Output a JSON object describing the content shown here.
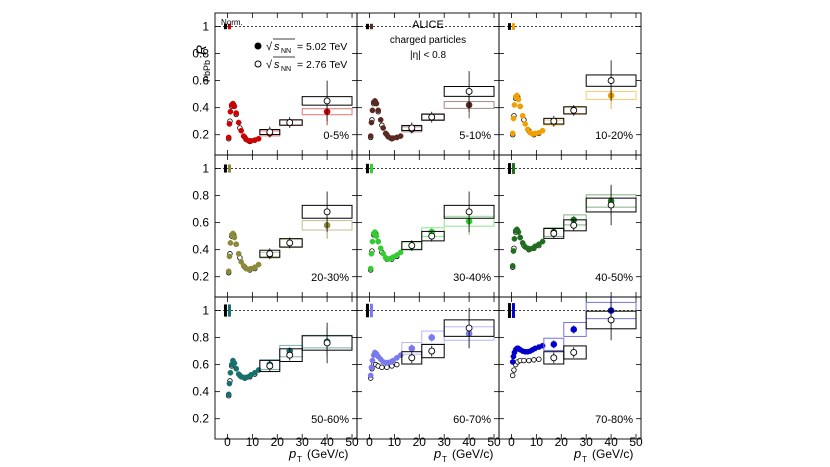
{
  "figure": {
    "ylabel_main": "R",
    "ylabel_sub": "PbPb",
    "xlabel_main": "p",
    "xlabel_sub": "T",
    "xlabel_units": "(GeV/c)",
    "norm_label": "Norm.",
    "legend": {
      "filled_prefix": "√",
      "filled_s": "s",
      "filled_sub": "NN",
      "filled_value": "= 5.02 TeV",
      "open_prefix": "√",
      "open_s": "s",
      "open_sub": "NN",
      "open_value": "= 2.76 TeV"
    },
    "annotation": {
      "line1": "ALICE",
      "line2": "charged particles",
      "line3": "|η| < 0.8"
    }
  },
  "chart_data": {
    "type": "scatter",
    "title": "",
    "xlabel": "pT (GeV/c)",
    "ylabel": "RPbPb",
    "xlim": [
      -5,
      52
    ],
    "ylim": [
      0.05,
      1.1
    ],
    "xticks": [
      0,
      10,
      20,
      30,
      40,
      50
    ],
    "yticks": [
      0.2,
      0.4,
      0.6,
      0.8,
      1
    ],
    "reference_line": 1,
    "series_labels": [
      "√sNN = 5.02 TeV (filled)",
      "√sNN = 2.76 TeV (open)"
    ],
    "panels": [
      {
        "label": "0-5%",
        "color": "#cc0000",
        "curve_502": [
          [
            0.5,
            0.18
          ],
          [
            0.8,
            0.28
          ],
          [
            1.2,
            0.37
          ],
          [
            1.7,
            0.42
          ],
          [
            2.2,
            0.43
          ],
          [
            2.8,
            0.41
          ],
          [
            3.5,
            0.36
          ],
          [
            4.5,
            0.29
          ],
          [
            5.5,
            0.23
          ],
          [
            6.5,
            0.19
          ],
          [
            7.5,
            0.165
          ],
          [
            8.5,
            0.155
          ],
          [
            9.5,
            0.155
          ],
          [
            11,
            0.16
          ],
          [
            12.5,
            0.17
          ]
        ],
        "curve_276": [
          [
            0.5,
            0.17
          ],
          [
            1.0,
            0.3
          ],
          [
            1.7,
            0.41
          ],
          [
            2.5,
            0.42
          ],
          [
            3.5,
            0.35
          ],
          [
            5,
            0.25
          ],
          [
            7,
            0.18
          ],
          [
            9,
            0.15
          ],
          [
            11,
            0.16
          ]
        ],
        "hp_502": [
          [
            17,
            0.21
          ],
          [
            25,
            0.29
          ],
          [
            40,
            0.37
          ]
        ],
        "hp_276": [
          [
            17,
            0.22
          ],
          [
            25,
            0.29
          ],
          [
            40,
            0.45
          ]
        ],
        "norm_unc": 0.02
      },
      {
        "label": "5-10%",
        "color": "#5a2a22",
        "curve_502": [
          [
            0.5,
            0.19
          ],
          [
            0.8,
            0.29
          ],
          [
            1.2,
            0.38
          ],
          [
            1.7,
            0.44
          ],
          [
            2.2,
            0.45
          ],
          [
            2.8,
            0.43
          ],
          [
            3.5,
            0.38
          ],
          [
            4.5,
            0.31
          ],
          [
            5.5,
            0.25
          ],
          [
            6.5,
            0.21
          ],
          [
            7.5,
            0.185
          ],
          [
            8.5,
            0.175
          ],
          [
            9.5,
            0.175
          ],
          [
            11,
            0.18
          ],
          [
            12.5,
            0.19
          ]
        ],
        "curve_276": [
          [
            0.5,
            0.18
          ],
          [
            1.0,
            0.31
          ],
          [
            1.7,
            0.43
          ],
          [
            2.5,
            0.44
          ],
          [
            3.5,
            0.37
          ],
          [
            5,
            0.27
          ],
          [
            7,
            0.2
          ],
          [
            9,
            0.17
          ],
          [
            11,
            0.18
          ]
        ],
        "hp_502": [
          [
            17,
            0.24
          ],
          [
            25,
            0.33
          ],
          [
            40,
            0.42
          ]
        ],
        "hp_276": [
          [
            17,
            0.25
          ],
          [
            25,
            0.33
          ],
          [
            40,
            0.52
          ]
        ],
        "norm_unc": 0.02
      },
      {
        "label": "10-20%",
        "color": "#f0a000",
        "curve_502": [
          [
            0.5,
            0.21
          ],
          [
            0.8,
            0.32
          ],
          [
            1.2,
            0.42
          ],
          [
            1.7,
            0.48
          ],
          [
            2.2,
            0.49
          ],
          [
            2.8,
            0.46
          ],
          [
            3.5,
            0.41
          ],
          [
            4.5,
            0.34
          ],
          [
            5.5,
            0.28
          ],
          [
            6.5,
            0.24
          ],
          [
            7.5,
            0.215
          ],
          [
            8.5,
            0.205
          ],
          [
            9.5,
            0.21
          ],
          [
            11,
            0.215
          ],
          [
            12.5,
            0.23
          ]
        ],
        "curve_276": [
          [
            0.5,
            0.2
          ],
          [
            1.0,
            0.34
          ],
          [
            1.7,
            0.47
          ],
          [
            2.5,
            0.48
          ],
          [
            3.5,
            0.41
          ],
          [
            5,
            0.31
          ],
          [
            7,
            0.23
          ],
          [
            9,
            0.2
          ],
          [
            11,
            0.21
          ]
        ],
        "hp_502": [
          [
            17,
            0.29
          ],
          [
            25,
            0.38
          ],
          [
            40,
            0.49
          ]
        ],
        "hp_276": [
          [
            17,
            0.3
          ],
          [
            25,
            0.38
          ],
          [
            40,
            0.6
          ]
        ],
        "norm_unc": 0.025
      },
      {
        "label": "20-30%",
        "color": "#8c8a3a",
        "curve_502": [
          [
            0.5,
            0.24
          ],
          [
            0.8,
            0.35
          ],
          [
            1.2,
            0.45
          ],
          [
            1.7,
            0.51
          ],
          [
            2.2,
            0.52
          ],
          [
            2.8,
            0.49
          ],
          [
            3.5,
            0.44
          ],
          [
            4.5,
            0.37
          ],
          [
            5.5,
            0.31
          ],
          [
            6.5,
            0.28
          ],
          [
            7.5,
            0.26
          ],
          [
            8.5,
            0.255
          ],
          [
            9.5,
            0.26
          ],
          [
            11,
            0.27
          ],
          [
            12.5,
            0.29
          ]
        ],
        "curve_276": [
          [
            0.5,
            0.23
          ],
          [
            1.0,
            0.37
          ],
          [
            1.7,
            0.5
          ],
          [
            2.5,
            0.51
          ],
          [
            3.5,
            0.44
          ],
          [
            5,
            0.34
          ],
          [
            7,
            0.27
          ],
          [
            9,
            0.25
          ],
          [
            11,
            0.26
          ]
        ],
        "hp_502": [
          [
            17,
            0.36
          ],
          [
            25,
            0.45
          ],
          [
            40,
            0.58
          ]
        ],
        "hp_276": [
          [
            17,
            0.37
          ],
          [
            25,
            0.45
          ],
          [
            40,
            0.68
          ]
        ],
        "norm_unc": 0.03
      },
      {
        "label": "30-40%",
        "color": "#33cc33",
        "curve_502": [
          [
            0.5,
            0.26
          ],
          [
            0.8,
            0.37
          ],
          [
            1.2,
            0.46
          ],
          [
            1.7,
            0.52
          ],
          [
            2.2,
            0.53
          ],
          [
            2.8,
            0.5
          ],
          [
            3.5,
            0.46
          ],
          [
            4.5,
            0.41
          ],
          [
            5.5,
            0.37
          ],
          [
            6.5,
            0.34
          ],
          [
            7.5,
            0.33
          ],
          [
            8.5,
            0.335
          ],
          [
            9.5,
            0.345
          ],
          [
            11,
            0.36
          ],
          [
            12.5,
            0.38
          ]
        ],
        "curve_276": [
          [
            0.5,
            0.25
          ],
          [
            1.0,
            0.39
          ],
          [
            1.7,
            0.51
          ],
          [
            2.5,
            0.52
          ],
          [
            3.5,
            0.46
          ],
          [
            5,
            0.38
          ],
          [
            7,
            0.33
          ],
          [
            9,
            0.33
          ],
          [
            11,
            0.35
          ]
        ],
        "hp_502": [
          [
            17,
            0.43
          ],
          [
            25,
            0.53
          ],
          [
            40,
            0.61
          ]
        ],
        "hp_276": [
          [
            17,
            0.43
          ],
          [
            25,
            0.5
          ],
          [
            40,
            0.68
          ]
        ],
        "norm_unc": 0.035
      },
      {
        "label": "40-50%",
        "color": "#1f6e1f",
        "curve_502": [
          [
            0.5,
            0.28
          ],
          [
            0.8,
            0.39
          ],
          [
            1.2,
            0.48
          ],
          [
            1.7,
            0.54
          ],
          [
            2.2,
            0.55
          ],
          [
            2.8,
            0.53
          ],
          [
            3.5,
            0.49
          ],
          [
            4.5,
            0.45
          ],
          [
            5.5,
            0.42
          ],
          [
            6.5,
            0.41
          ],
          [
            7.5,
            0.405
          ],
          [
            8.5,
            0.41
          ],
          [
            9.5,
            0.425
          ],
          [
            11,
            0.44
          ],
          [
            12.5,
            0.46
          ]
        ],
        "curve_276": [
          [
            0.5,
            0.27
          ],
          [
            1.0,
            0.41
          ],
          [
            1.7,
            0.53
          ],
          [
            2.5,
            0.54
          ],
          [
            3.5,
            0.49
          ],
          [
            5,
            0.43
          ],
          [
            7,
            0.4
          ],
          [
            9,
            0.41
          ],
          [
            11,
            0.43
          ]
        ],
        "hp_502": [
          [
            17,
            0.53
          ],
          [
            25,
            0.62
          ],
          [
            40,
            0.76
          ]
        ],
        "hp_276": [
          [
            17,
            0.52
          ],
          [
            25,
            0.58
          ],
          [
            40,
            0.73
          ]
        ],
        "norm_unc": 0.04
      },
      {
        "label": "50-60%",
        "color": "#17706e",
        "curve_502": [
          [
            0.5,
            0.38
          ],
          [
            0.8,
            0.46
          ],
          [
            1.2,
            0.54
          ],
          [
            1.7,
            0.6
          ],
          [
            2.2,
            0.63
          ],
          [
            2.8,
            0.61
          ],
          [
            3.5,
            0.57
          ],
          [
            4.5,
            0.53
          ],
          [
            5.5,
            0.51
          ],
          [
            6.5,
            0.505
          ],
          [
            7.5,
            0.505
          ],
          [
            8.5,
            0.51
          ],
          [
            9.5,
            0.525
          ],
          [
            11,
            0.54
          ],
          [
            12.5,
            0.56
          ]
        ],
        "curve_276": [
          [
            0.5,
            0.37
          ],
          [
            1.0,
            0.48
          ],
          [
            1.7,
            0.59
          ],
          [
            2.5,
            0.61
          ],
          [
            3.5,
            0.57
          ],
          [
            5,
            0.52
          ],
          [
            7,
            0.5
          ],
          [
            9,
            0.51
          ],
          [
            11,
            0.53
          ]
        ],
        "hp_502": [
          [
            17,
            0.6
          ],
          [
            25,
            0.7
          ],
          [
            40,
            0.77
          ]
        ],
        "hp_276": [
          [
            17,
            0.59
          ],
          [
            25,
            0.67
          ],
          [
            40,
            0.76
          ]
        ],
        "norm_unc": 0.045
      },
      {
        "label": "60-70%",
        "color": "#7a7aee",
        "curve_502": [
          [
            0.5,
            0.52
          ],
          [
            0.8,
            0.58
          ],
          [
            1.2,
            0.63
          ],
          [
            1.7,
            0.67
          ],
          [
            2.2,
            0.69
          ],
          [
            2.8,
            0.68
          ],
          [
            3.5,
            0.66
          ],
          [
            4.5,
            0.64
          ],
          [
            5.5,
            0.62
          ],
          [
            6.5,
            0.615
          ],
          [
            7.5,
            0.615
          ],
          [
            8.5,
            0.62
          ],
          [
            9.5,
            0.63
          ],
          [
            11,
            0.65
          ],
          [
            12.5,
            0.67
          ]
        ],
        "curve_276": [
          [
            0.5,
            0.5
          ],
          [
            1.0,
            0.57
          ],
          [
            1.7,
            0.6
          ],
          [
            2.5,
            0.6
          ],
          [
            3.5,
            0.59
          ],
          [
            5,
            0.58
          ],
          [
            7,
            0.58
          ],
          [
            9,
            0.59
          ],
          [
            11,
            0.6
          ]
        ],
        "hp_502": [
          [
            17,
            0.72
          ],
          [
            25,
            0.8
          ],
          [
            40,
            0.83
          ]
        ],
        "hp_276": [
          [
            17,
            0.65
          ],
          [
            25,
            0.7
          ],
          [
            40,
            0.87
          ]
        ],
        "norm_unc": 0.05
      },
      {
        "label": "70-80%",
        "color": "#0000cc",
        "curve_502": [
          [
            0.5,
            0.62
          ],
          [
            0.8,
            0.66
          ],
          [
            1.2,
            0.69
          ],
          [
            1.7,
            0.71
          ],
          [
            2.2,
            0.72
          ],
          [
            2.8,
            0.72
          ],
          [
            3.5,
            0.71
          ],
          [
            4.5,
            0.7
          ],
          [
            5.5,
            0.695
          ],
          [
            6.5,
            0.695
          ],
          [
            7.5,
            0.7
          ],
          [
            8.5,
            0.71
          ],
          [
            9.5,
            0.72
          ],
          [
            11,
            0.73
          ],
          [
            12.5,
            0.74
          ]
        ],
        "curve_276": [
          [
            0.5,
            0.52
          ],
          [
            1.0,
            0.56
          ],
          [
            1.7,
            0.6
          ],
          [
            2.5,
            0.62
          ],
          [
            3.5,
            0.63
          ],
          [
            5,
            0.63
          ],
          [
            7,
            0.63
          ],
          [
            9,
            0.635
          ],
          [
            11,
            0.64
          ]
        ],
        "hp_502": [
          [
            17,
            0.75
          ],
          [
            25,
            0.86
          ],
          [
            40,
            1.0
          ]
        ],
        "hp_276": [
          [
            17,
            0.65
          ],
          [
            25,
            0.69
          ],
          [
            40,
            0.93
          ]
        ],
        "norm_unc": 0.055
      }
    ]
  }
}
